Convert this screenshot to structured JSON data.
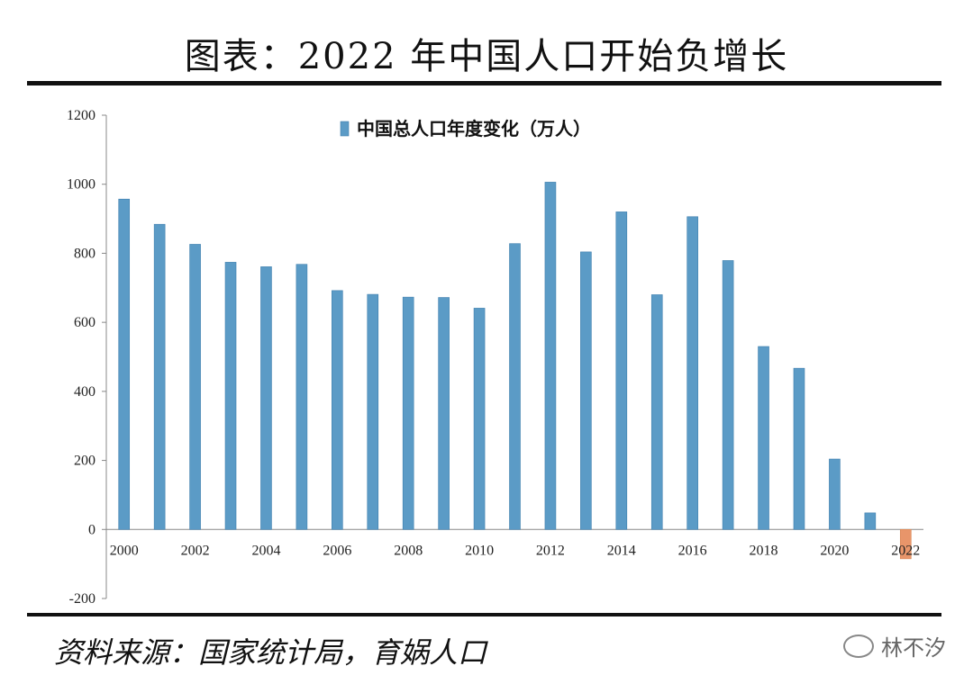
{
  "header": {
    "title": "图表：2022 年中国人口开始负增长"
  },
  "footer": {
    "source": "资料来源：国家统计局，育娲人口",
    "watermark": "林不汐"
  },
  "colors": {
    "bar": "#5b9bc6",
    "bar_negative": "#e8956a",
    "axis": "#888888"
  },
  "chart_data": {
    "type": "bar",
    "title": "",
    "legend": [
      "中国总人口年度变化（万人）"
    ],
    "legend_position": "top-center",
    "categories": [
      "2000",
      "2001",
      "2002",
      "2003",
      "2004",
      "2005",
      "2006",
      "2007",
      "2008",
      "2009",
      "2010",
      "2011",
      "2012",
      "2013",
      "2014",
      "2015",
      "2016",
      "2017",
      "2018",
      "2019",
      "2020",
      "2021",
      "2022"
    ],
    "x_tick_labels": [
      "2000",
      "2002",
      "2004",
      "2006",
      "2008",
      "2010",
      "2012",
      "2014",
      "2016",
      "2018",
      "2020",
      "2022"
    ],
    "values": [
      957,
      884,
      826,
      774,
      761,
      768,
      692,
      681,
      673,
      672,
      641,
      828,
      1006,
      804,
      920,
      680,
      906,
      779,
      530,
      467,
      204,
      48,
      -85
    ],
    "ylim": [
      -200,
      1200
    ],
    "y_ticks": [
      "-200",
      "0",
      "200",
      "400",
      "600",
      "800",
      "1000",
      "1200"
    ],
    "xlabel": "",
    "ylabel": "",
    "grid": false
  }
}
